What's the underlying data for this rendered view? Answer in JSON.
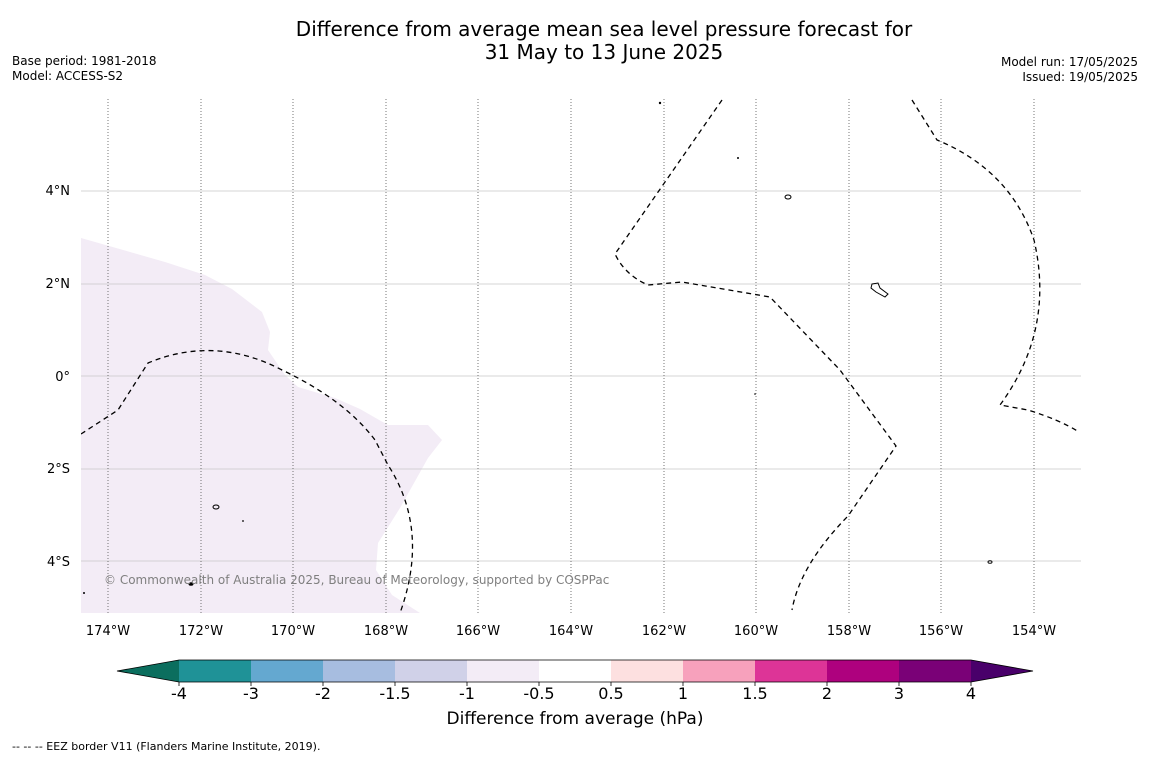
{
  "title": {
    "line1": "Difference from average mean sea level pressure forecast for",
    "line2": "31 May to 13 June 2025"
  },
  "meta_left": {
    "base_period": "Base period: 1981-2018",
    "model": "Model: ACCESS-S2"
  },
  "meta_right": {
    "model_run": "Model run: 17/05/2025",
    "issued": "Issued: 19/05/2025"
  },
  "map": {
    "copyright": "© Commonwealth of Australia 2025, Bureau of Meteorology, supported by COSPPac",
    "lat_labels": [
      "4°N",
      "2°N",
      "0°",
      "2°S",
      "4°S"
    ],
    "lon_labels": [
      "174°W",
      "172°W",
      "170°W",
      "168°W",
      "166°W",
      "164°W",
      "162°W",
      "160°W",
      "158°W",
      "156°W",
      "154°W"
    ],
    "shading_color": "#f3ecf6",
    "contour_color": "#000000"
  },
  "colorbar": {
    "tick_labels": [
      "-4",
      "-3",
      "-2",
      "-1.5",
      "-1",
      "-0.5",
      "0.5",
      "1",
      "1.5",
      "2",
      "3",
      "4"
    ],
    "colors": [
      "#0b6e5e",
      "#1f9297",
      "#64a8d0",
      "#a7bde0",
      "#d0d1e8",
      "#f3ecf6",
      "#ffffff",
      "#fde0e0",
      "#f7a1bc",
      "#dd3497",
      "#ae017e",
      "#7a0177",
      "#49006a"
    ],
    "label": "Difference from average (hPa)"
  },
  "footnote": "--  --  -- EEZ border V11 (Flanders Marine Institute, 2019)."
}
